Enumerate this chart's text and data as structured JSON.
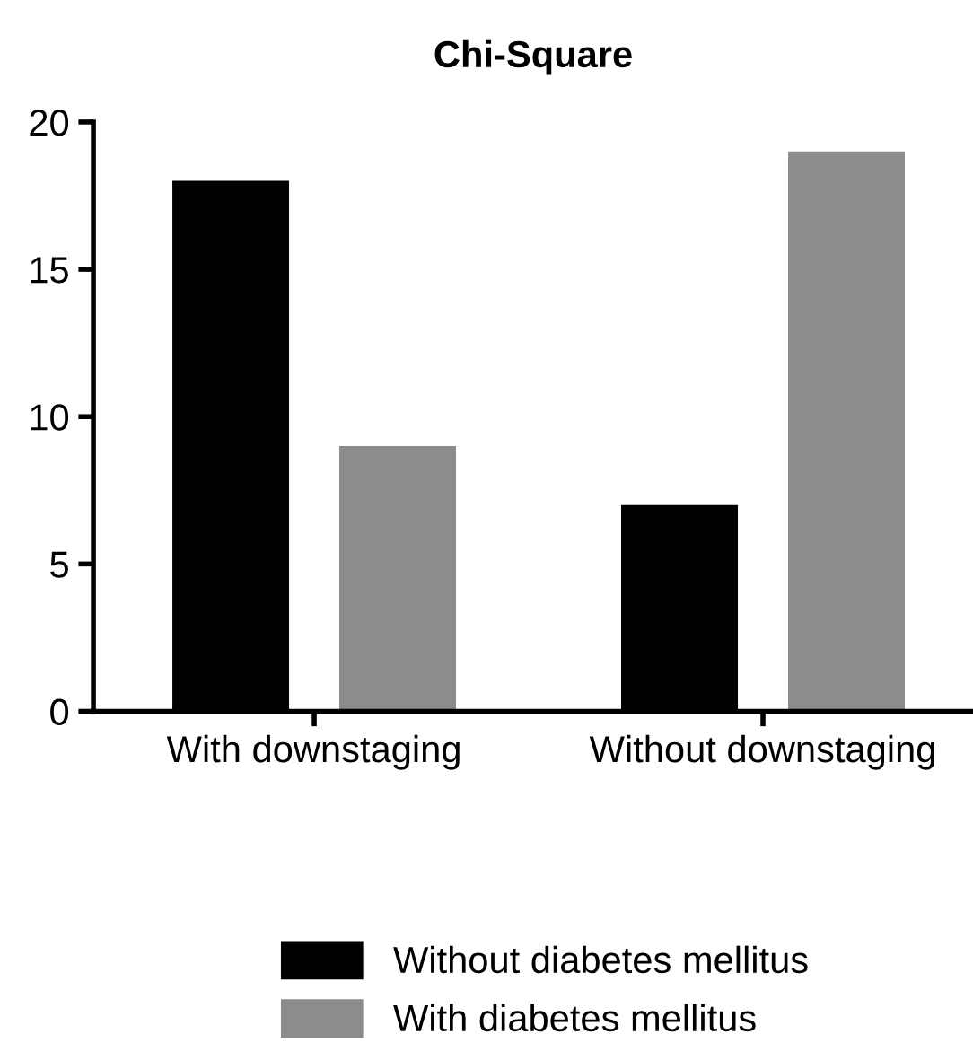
{
  "chart_data": {
    "type": "bar",
    "title": "Chi-Square",
    "categories": [
      "With downstaging",
      "Without downstaging"
    ],
    "series": [
      {
        "name": "Without diabetes mellitus",
        "color": "#000000",
        "values": [
          18,
          7
        ]
      },
      {
        "name": "With diabetes mellitus",
        "color": "#8c8c8c",
        "values": [
          9,
          19
        ]
      }
    ],
    "ylim": [
      0,
      20
    ],
    "yticks": [
      0,
      5,
      10,
      15,
      20
    ],
    "grid": false,
    "legend": "bottom"
  }
}
